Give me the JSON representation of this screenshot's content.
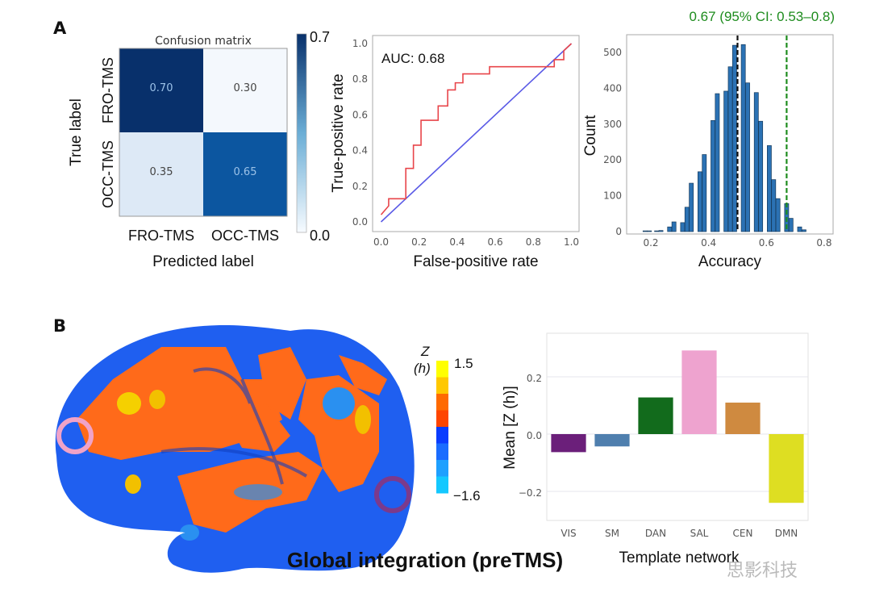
{
  "panel_labels": {
    "a": "A",
    "b": "B"
  },
  "chart_data": [
    {
      "type": "heatmap",
      "title": "Confusion matrix",
      "xlabel": "Predicted label",
      "ylabel": "True label",
      "x_categories": [
        "FRO-TMS",
        "OCC-TMS"
      ],
      "y_categories": [
        "FRO-TMS",
        "OCC-TMS"
      ],
      "values": [
        [
          "0.70",
          "0.30"
        ],
        [
          "0.35",
          "0.65"
        ]
      ],
      "colorbar": {
        "min": "0.0",
        "max": "0.7",
        "colormap": "Blues"
      }
    },
    {
      "type": "line",
      "annotation": "AUC: 0.68",
      "xlabel": "False-positive rate",
      "ylabel": "True-positive rate",
      "xlim": [
        0,
        1
      ],
      "ylim": [
        0,
        1
      ],
      "xticks": [
        "0.0",
        "0.2",
        "0.4",
        "0.6",
        "0.8",
        "1.0"
      ],
      "yticks": [
        "0.0",
        "0.2",
        "0.4",
        "0.6",
        "0.8",
        "1.0"
      ],
      "roc_color": "#e8454a",
      "chance_color": "#5a5ae6",
      "roc": [
        [
          0,
          0.04
        ],
        [
          0.04,
          0.09
        ],
        [
          0.04,
          0.13
        ],
        [
          0.13,
          0.13
        ],
        [
          0.13,
          0.3
        ],
        [
          0.17,
          0.3
        ],
        [
          0.17,
          0.43
        ],
        [
          0.21,
          0.43
        ],
        [
          0.21,
          0.57
        ],
        [
          0.3,
          0.57
        ],
        [
          0.3,
          0.65
        ],
        [
          0.35,
          0.65
        ],
        [
          0.35,
          0.74
        ],
        [
          0.39,
          0.74
        ],
        [
          0.39,
          0.78
        ],
        [
          0.43,
          0.78
        ],
        [
          0.43,
          0.83
        ],
        [
          0.57,
          0.83
        ],
        [
          0.57,
          0.87
        ],
        [
          0.91,
          0.87
        ],
        [
          0.91,
          0.91
        ],
        [
          0.96,
          0.91
        ],
        [
          0.96,
          0.96
        ],
        [
          1.0,
          1.0
        ]
      ],
      "chance": [
        [
          0,
          0
        ],
        [
          1,
          1
        ]
      ]
    },
    {
      "type": "bar",
      "subtype": "histogram",
      "title": "0.67 (95% CI: 0.53–0.8)",
      "xlabel": "Accuracy",
      "ylabel": "Count",
      "xlim": [
        0.14,
        0.84
      ],
      "ylim": [
        0,
        545
      ],
      "xticks": [
        "0.2",
        "0.4",
        "0.6",
        "0.8"
      ],
      "yticks": [
        "0",
        "100",
        "200",
        "300",
        "400",
        "500"
      ],
      "bar_color": "#2b72b4",
      "x": [
        0.18,
        0.195,
        0.22,
        0.235,
        0.265,
        0.28,
        0.31,
        0.325,
        0.34,
        0.37,
        0.385,
        0.415,
        0.43,
        0.46,
        0.475,
        0.49,
        0.52,
        0.535,
        0.565,
        0.58,
        0.61,
        0.625,
        0.64,
        0.67,
        0.685,
        0.715,
        0.73
      ],
      "values": [
        2,
        2,
        2,
        3,
        13,
        27,
        25,
        68,
        135,
        167,
        215,
        310,
        385,
        392,
        460,
        520,
        522,
        415,
        388,
        308,
        240,
        145,
        92,
        78,
        37,
        13,
        5
      ],
      "vlines": [
        {
          "x": 0.5,
          "color": "#111111",
          "style": "dashed"
        },
        {
          "x": 0.67,
          "color": "#1e8c1e",
          "style": "dashed"
        }
      ],
      "title_color": "#1e8c1e"
    },
    {
      "type": "bar",
      "xlabel": "Template network",
      "ylabel": "Mean [Z (h)]",
      "ylim": [
        -0.3,
        0.35
      ],
      "yticks": [
        "−0.2",
        "0.0",
        "0.2"
      ],
      "categories": [
        "VIS",
        "SM",
        "DAN",
        "SAL",
        "CEN",
        "DMN"
      ],
      "values": [
        -0.063,
        -0.043,
        0.128,
        0.292,
        0.11,
        -0.24
      ],
      "colors": [
        "#6b1f7a",
        "#4f7fae",
        "#126b1c",
        "#eea3cf",
        "#cf8a40",
        "#dede22"
      ],
      "grid": true
    }
  ],
  "brain": {
    "colorbar_title_line1": "Z",
    "colorbar_title_line2": "(h)",
    "colorbar_max": "1.5",
    "colorbar_min": "−1.6",
    "colorbar_colors": [
      "#ffff00",
      "#ffc800",
      "#ff6a00",
      "#ff4500",
      "#0a3cff",
      "#1a6cff",
      "#1ea0ff",
      "#14c8ff"
    ],
    "marker_colors": {
      "frontal": "#f0a3c8",
      "occipital": "#7b3a8c"
    },
    "caption": "Global integration (preTMS)"
  },
  "watermark": "思影科技"
}
